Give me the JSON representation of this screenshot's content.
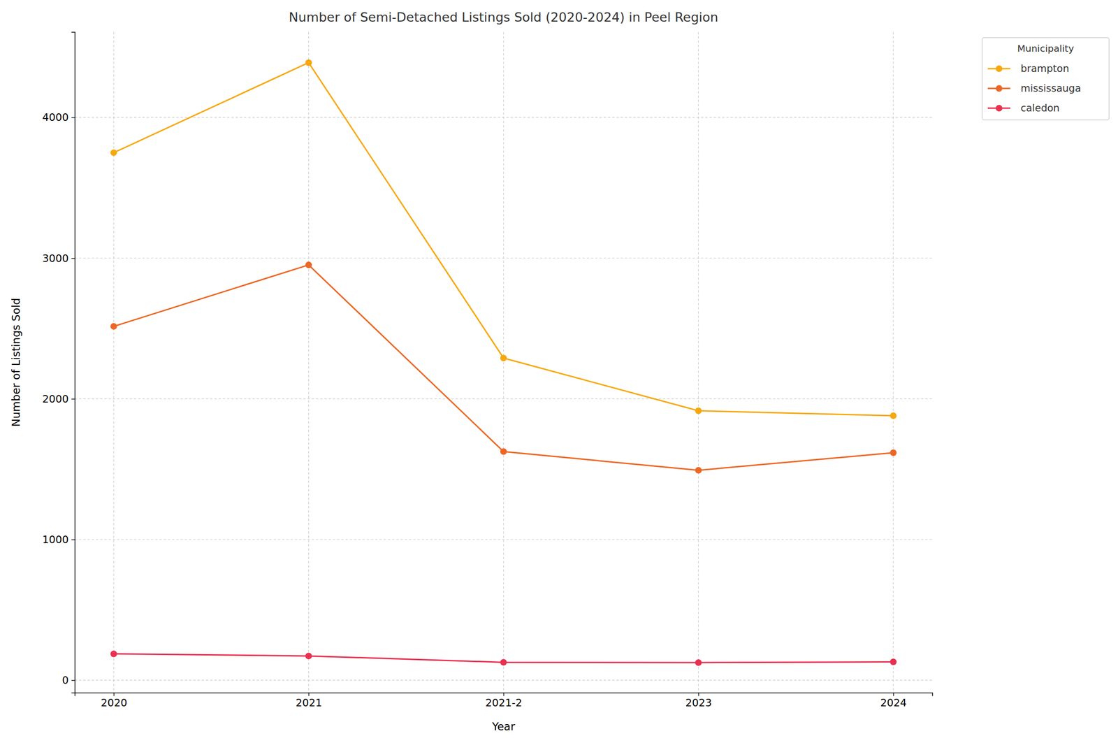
{
  "chart_data": {
    "type": "line",
    "title": "Number of Semi-Detached Listings Sold (2020-2024) in Peel Region",
    "x_label": "Year",
    "y_label": "Number of Listings Sold",
    "categories": [
      "2020",
      "2021",
      "2021-2",
      "2023",
      "2024"
    ],
    "series": [
      {
        "name": "brampton",
        "color": "#f7a80f",
        "values": [
          3750,
          4390,
          2290,
          1915,
          1880
        ]
      },
      {
        "name": "mississauga",
        "color": "#ec6725",
        "values": [
          2515,
          2952,
          1625,
          1492,
          1617
        ]
      },
      {
        "name": "caledon",
        "color": "#e93050",
        "values": [
          187,
          172,
          127,
          125,
          130
        ]
      }
    ],
    "ylim": [
      -89,
      4608
    ],
    "yticks": [
      0,
      1000,
      2000,
      3000,
      4000
    ],
    "grid": true,
    "marker": "circle",
    "line_style": "solid",
    "legend": "outside upper right",
    "legend_title": "Municipality"
  }
}
